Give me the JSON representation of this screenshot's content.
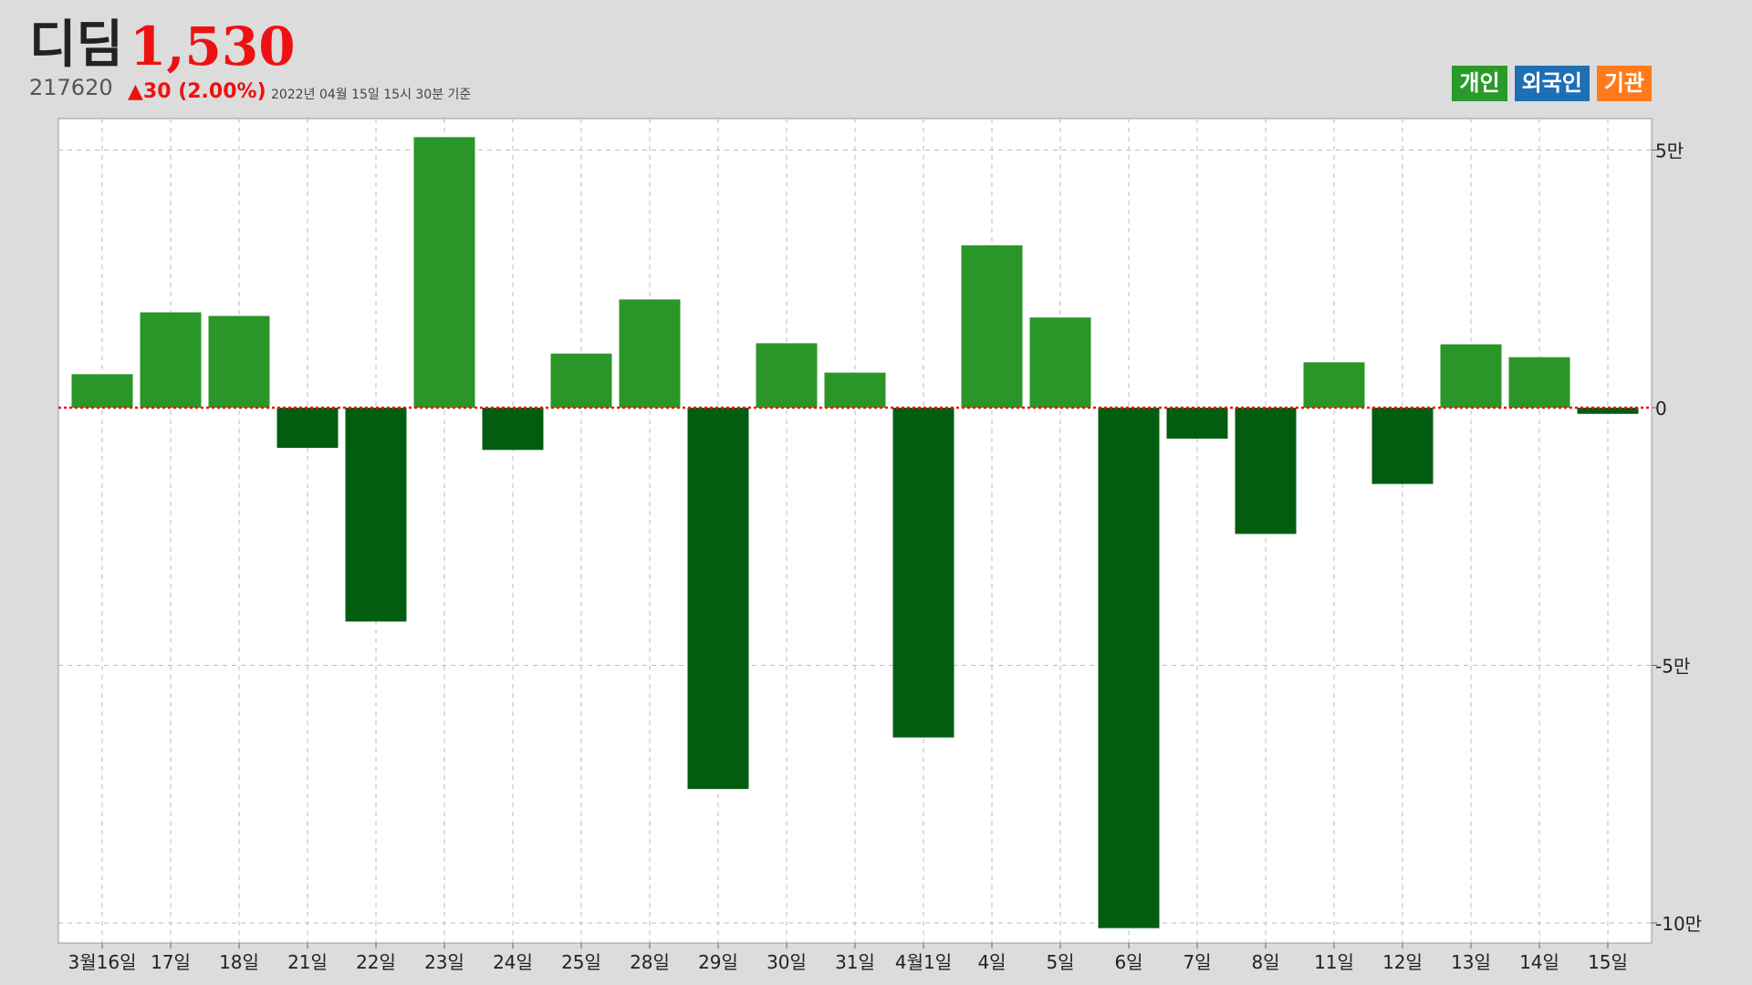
{
  "header": {
    "stock_name": "디딤",
    "price": "1,530",
    "code": "217620",
    "change": "▲30 (2.00%)",
    "as_of": "2022년 04월 15일 15시 30분 기준"
  },
  "legend": [
    {
      "label": "개인",
      "color": "#2a9a2a"
    },
    {
      "label": "외국인",
      "color": "#1f6fb5"
    },
    {
      "label": "기관",
      "color": "#ff7a1a"
    }
  ],
  "colors": {
    "positive": "#2a9628",
    "negative": "#035d11",
    "zero_line": "#ee1111",
    "grid": "#bbbbbb"
  },
  "chart_data": {
    "type": "bar",
    "categories": [
      "3월16일",
      "17일",
      "18일",
      "21일",
      "22일",
      "23일",
      "24일",
      "25일",
      "28일",
      "29일",
      "30일",
      "31일",
      "4월1일",
      "4일",
      "5일",
      "6일",
      "7일",
      "8일",
      "11일",
      "12일",
      "13일",
      "14일",
      "15일"
    ],
    "series": [
      {
        "name": "개인",
        "values": [
          6500,
          18500,
          17800,
          -7800,
          -41500,
          52500,
          -8200,
          10500,
          21000,
          -74000,
          12500,
          6800,
          -64000,
          31500,
          17500,
          -101000,
          -6000,
          -24500,
          8800,
          -14800,
          12300,
          9800,
          -1200
        ]
      }
    ],
    "ylim": [
      -100000,
      55000
    ],
    "yticks": [
      50000,
      0,
      -50000,
      -100000
    ],
    "ytick_labels": [
      "5만",
      "0",
      "-5만",
      "-10만"
    ],
    "y_axis_side": "right",
    "grid": true,
    "zero_line": "dotted red"
  }
}
